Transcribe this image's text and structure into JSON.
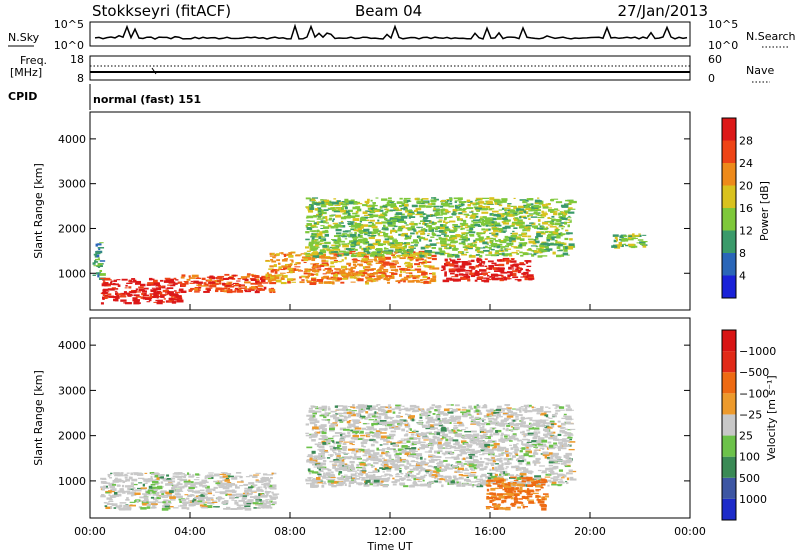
{
  "header": {
    "site": "Stokkseyri (fitACF)",
    "beam": "Beam 04",
    "date": "27/Jan/2013"
  },
  "noise_panel": {
    "left_label": "N.Sky",
    "right_label": "N.Search",
    "ticks_left": [
      "10^5",
      "10^0"
    ],
    "ticks_right": [
      "10^5",
      "10^0"
    ]
  },
  "freq_panel": {
    "left_label_1": "Freq.",
    "left_label_2": "[MHz]",
    "ticks_left": [
      "18",
      "8"
    ],
    "right_label": "Nave",
    "ticks_right": [
      "60",
      "0"
    ]
  },
  "cpid": {
    "label": "CPID",
    "value": "normal (fast) 151"
  },
  "chart_data": [
    {
      "type": "heatmap",
      "title": "",
      "xlabel": "",
      "ylabel": "Slant Range [km]",
      "xlim": [
        0,
        24
      ],
      "ylim": [
        180,
        4600
      ],
      "x_ticks": [
        "00:00",
        "04:00",
        "08:00",
        "12:00",
        "16:00",
        "20:00",
        "00:00"
      ],
      "y_ticks": [
        1000,
        2000,
        3000,
        4000
      ],
      "colorbar": {
        "label": "Power [dB]",
        "ticks": [
          4,
          8,
          12,
          16,
          20,
          24,
          28
        ],
        "colors": [
          "#1a22d8",
          "#2a66b8",
          "#3a9a6a",
          "#7ec83a",
          "#d9c21e",
          "#ee8a1a",
          "#ee4416",
          "#dc1818"
        ]
      },
      "regions": [
        {
          "t": [
            0.1,
            0.4
          ],
          "r": [
            900,
            1800
          ],
          "level": 2
        },
        {
          "t": [
            0.4,
            3.6
          ],
          "r": [
            350,
            900
          ],
          "level": 7
        },
        {
          "t": [
            3.6,
            7.3
          ],
          "r": [
            600,
            1000
          ],
          "level": 6
        },
        {
          "t": [
            7.0,
            13.7
          ],
          "r": [
            800,
            1500
          ],
          "level": 5
        },
        {
          "t": [
            14.0,
            17.6
          ],
          "r": [
            850,
            1350
          ],
          "level": 7
        },
        {
          "t": [
            8.6,
            19.2
          ],
          "r": [
            1400,
            2700
          ],
          "level": 3
        },
        {
          "t": [
            20.8,
            22.2
          ],
          "r": [
            1600,
            1900
          ],
          "level": 3
        }
      ]
    },
    {
      "type": "heatmap",
      "title": "",
      "xlabel": "Time UT",
      "ylabel": "Slant Range [km]",
      "xlim": [
        0,
        24
      ],
      "ylim": [
        180,
        4600
      ],
      "x_ticks": [
        "00:00",
        "04:00",
        "08:00",
        "12:00",
        "16:00",
        "20:00",
        "00:00"
      ],
      "y_ticks": [
        1000,
        2000,
        3000,
        4000
      ],
      "colorbar": {
        "label": "Velocity [m s⁻¹]",
        "ticks": [
          "1000",
          "500",
          "100",
          "25",
          "−25",
          "−100",
          "−500",
          "−1000"
        ],
        "colors": [
          "#1d2bc9",
          "#3d56a3",
          "#3a8a55",
          "#6cc24a",
          "#c8c8c8",
          "#ed9a2c",
          "#ee6a12",
          "#e12a18",
          "#d81414"
        ]
      },
      "regions": [
        {
          "t": [
            0.4,
            7.3
          ],
          "r": [
            400,
            1200
          ],
          "value": 0
        },
        {
          "t": [
            8.6,
            19.2
          ],
          "r": [
            900,
            2700
          ],
          "value": 0
        },
        {
          "t": [
            15.8,
            18.2
          ],
          "r": [
            400,
            1100
          ],
          "value": -300
        }
      ]
    }
  ]
}
